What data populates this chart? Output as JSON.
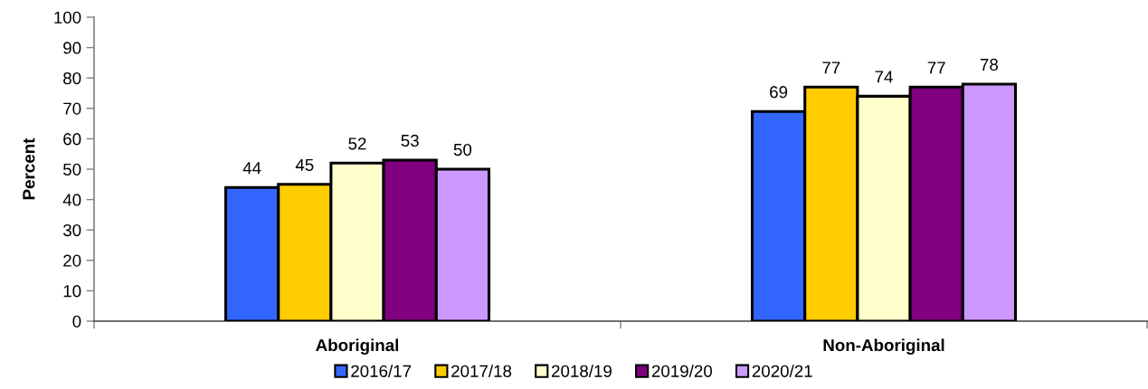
{
  "chart_data": {
    "type": "bar",
    "ylabel": "Percent",
    "categories": [
      "Aboriginal",
      "Non-Aboriginal"
    ],
    "series": [
      {
        "name": "2016/17",
        "color": "#3366ff",
        "values": [
          44,
          69
        ]
      },
      {
        "name": "2017/18",
        "color": "#ffcc00",
        "values": [
          45,
          77
        ]
      },
      {
        "name": "2018/19",
        "color": "#ffffcc",
        "values": [
          52,
          74
        ]
      },
      {
        "name": "2019/20",
        "color": "#800080",
        "values": [
          53,
          77
        ]
      },
      {
        "name": "2020/21",
        "color": "#cc99ff",
        "values": [
          50,
          78
        ]
      }
    ],
    "ylim": [
      0,
      100
    ],
    "yticks": [
      0,
      10,
      20,
      30,
      40,
      50,
      60,
      70,
      80,
      90,
      100
    ],
    "grid": false,
    "legend": "bottom",
    "data_labels": true
  }
}
